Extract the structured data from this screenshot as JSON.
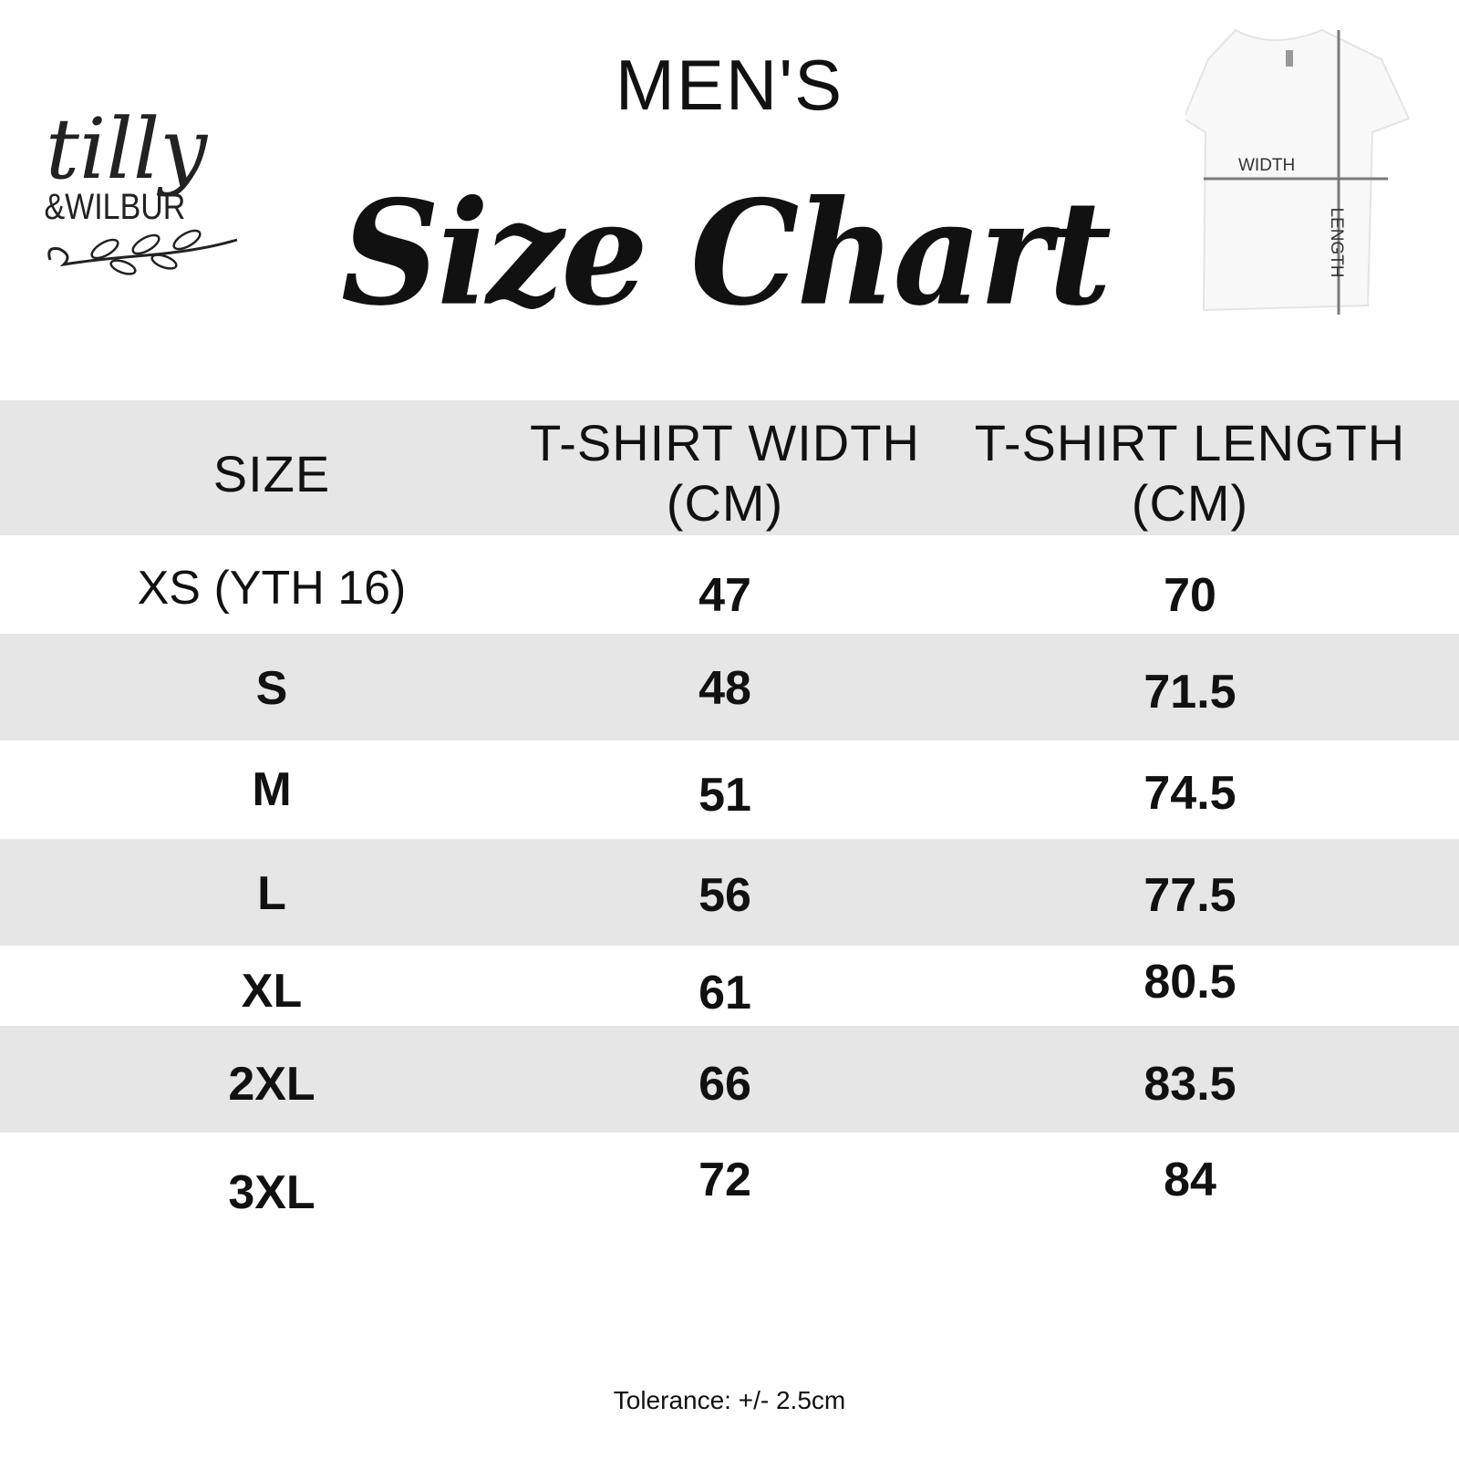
{
  "logo": {
    "text_main": "tilly",
    "text_sub": "&WILBUR"
  },
  "header": {
    "subtitle": "MEN'S",
    "title": "Size Chart"
  },
  "diagram": {
    "width_label": "WIDTH",
    "length_label": "LENGTH",
    "line_color": "#7a7a7a"
  },
  "table": {
    "columns": [
      "SIZE",
      "T-SHIRT WIDTH (CM)",
      "T-SHIRT LENGTH (CM)"
    ],
    "rows": [
      {
        "size": "XS (YTH 16)",
        "width": "47",
        "length": "70"
      },
      {
        "size": "S",
        "width": "48",
        "length": "71.5"
      },
      {
        "size": "M",
        "width": "51",
        "length": "74.5"
      },
      {
        "size": "L",
        "width": "56",
        "length": "77.5"
      },
      {
        "size": "XL",
        "width": "61",
        "length": "80.5"
      },
      {
        "size": "2XL",
        "width": "66",
        "length": "83.5"
      },
      {
        "size": "3XL",
        "width": "72",
        "length": "84"
      }
    ],
    "band_color": "#e6e6e6"
  },
  "footer": {
    "tolerance": "Tolerance: +/- 2.5cm"
  }
}
